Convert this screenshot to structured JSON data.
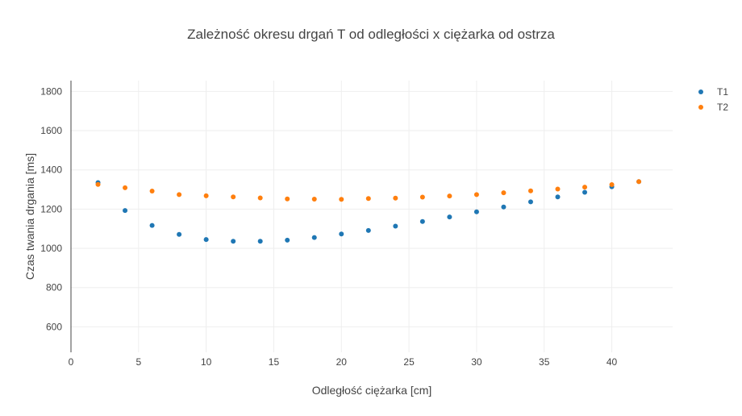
{
  "chart_data": {
    "type": "scatter",
    "title": "Zależność okresu drgań T od odległości x ciężarka od ostrza",
    "xlabel": "Odległość ciężarka [cm]",
    "ylabel": "Czas twania drgania [ms]",
    "xlim": [
      0,
      44.5
    ],
    "ylim": [
      470,
      1855
    ],
    "x_ticks": [
      0,
      5,
      10,
      15,
      20,
      25,
      30,
      35,
      40
    ],
    "y_ticks": [
      600,
      800,
      1000,
      1200,
      1400,
      1600,
      1800
    ],
    "grid": true,
    "legend_position": "top-right",
    "x": [
      2,
      4,
      6,
      8,
      10,
      12,
      14,
      16,
      18,
      20,
      22,
      24,
      26,
      28,
      30,
      32,
      34,
      36,
      38,
      40,
      42
    ],
    "series": [
      {
        "name": "T1",
        "color": "#1f77b4",
        "values": [
          1335,
          1193,
          1117,
          1071,
          1045,
          1036,
          1036,
          1042,
          1055,
          1073,
          1091,
          1113,
          1137,
          1160,
          1186,
          1211,
          1237,
          1262,
          1286,
          1314,
          1340
        ]
      },
      {
        "name": "T2",
        "color": "#ff7f0e",
        "values": [
          1326,
          1309,
          1292,
          1274,
          1268,
          1262,
          1257,
          1252,
          1251,
          1250,
          1254,
          1256,
          1261,
          1267,
          1274,
          1283,
          1293,
          1302,
          1312,
          1325,
          1340
        ]
      }
    ]
  }
}
